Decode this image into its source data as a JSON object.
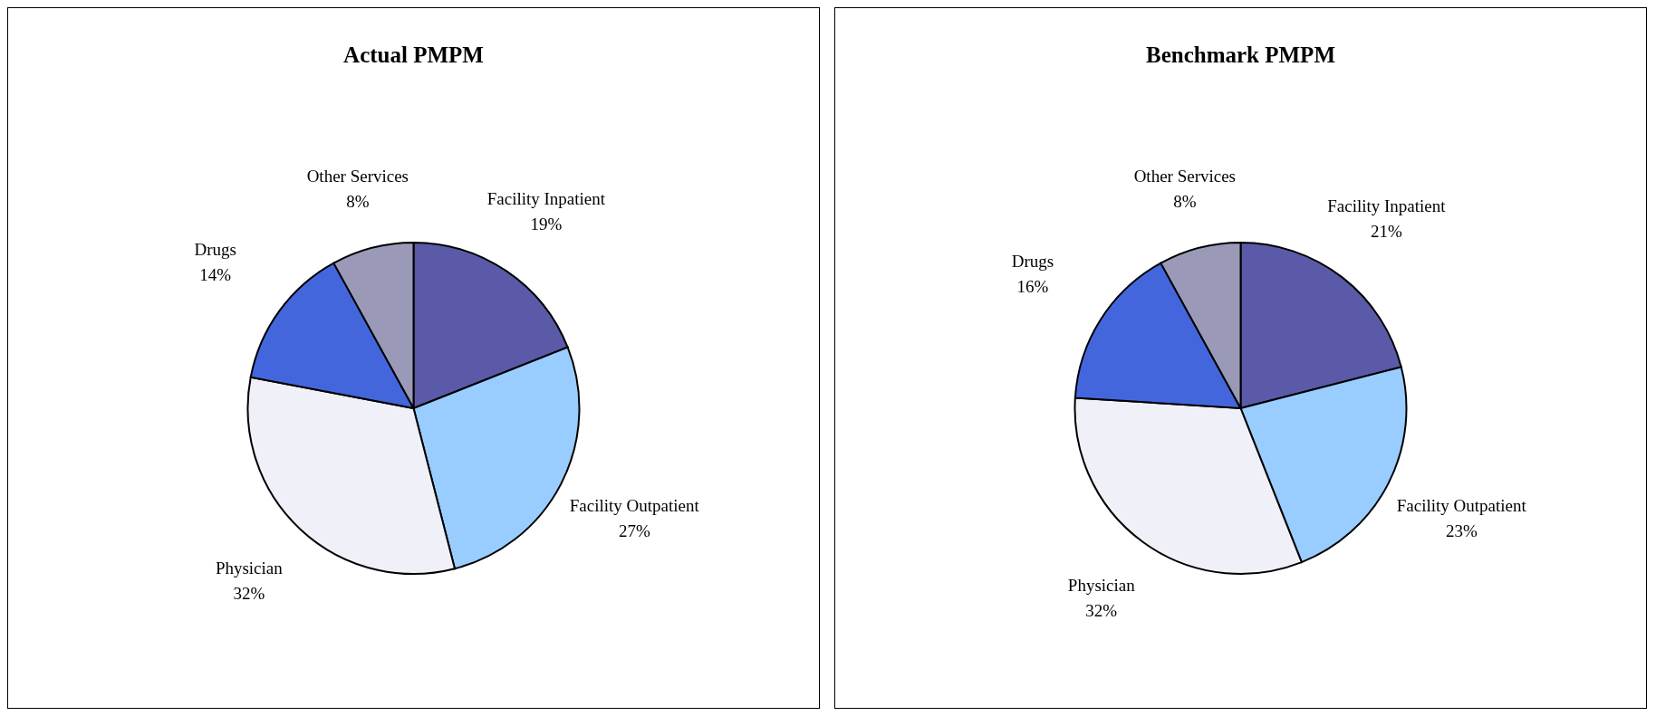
{
  "chart_data": [
    {
      "type": "pie",
      "title": "Actual PMPM",
      "categories": [
        "Facility Inpatient",
        "Facility Outpatient",
        "Physician",
        "Drugs",
        "Other Services"
      ],
      "values": [
        19,
        27,
        32,
        14,
        8
      ],
      "value_labels": [
        "19%",
        "27%",
        "32%",
        "14%",
        "8%"
      ],
      "colors": [
        "#5a5aa8",
        "#99ccff",
        "#f0f0f8",
        "#4466dd",
        "#9a9ab8"
      ],
      "legend": false
    },
    {
      "type": "pie",
      "title": "Benchmark PMPM",
      "categories": [
        "Facility Inpatient",
        "Facility Outpatient",
        "Physician",
        "Drugs",
        "Other Services"
      ],
      "values": [
        21,
        23,
        32,
        16,
        8
      ],
      "value_labels": [
        "21%",
        "23%",
        "32%",
        "16%",
        "8%"
      ],
      "colors": [
        "#5a5aa8",
        "#99ccff",
        "#f0f0f8",
        "#4466dd",
        "#9a9ab8"
      ],
      "legend": false
    }
  ]
}
